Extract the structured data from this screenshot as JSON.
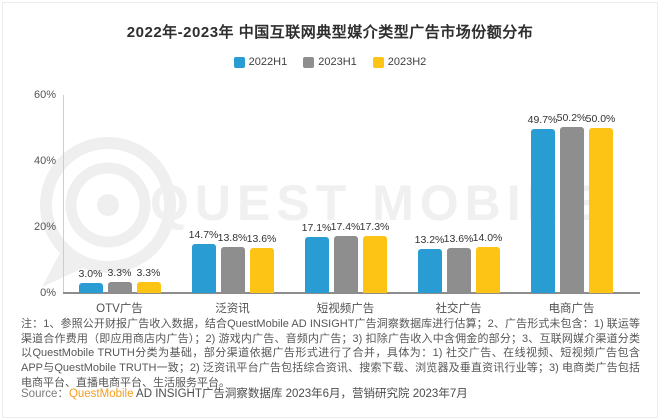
{
  "title": "2022年-2023年 中国互联网典型媒介类型广告市场份额分布",
  "legend": [
    {
      "label": "2022H1",
      "color": "#2A9CD4"
    },
    {
      "label": "2023H1",
      "color": "#8E8E8E"
    },
    {
      "label": "2023H2",
      "color": "#FDC416"
    }
  ],
  "chart_data": {
    "type": "bar",
    "categories": [
      "OTV广告",
      "泛资讯",
      "短视频广告",
      "社交广告",
      "电商广告"
    ],
    "series": [
      {
        "name": "2022H1",
        "color": "#2A9CD4",
        "values": [
          3.0,
          14.7,
          17.1,
          13.2,
          49.7
        ]
      },
      {
        "name": "2023H1",
        "color": "#8E8E8E",
        "values": [
          3.3,
          13.8,
          17.4,
          13.6,
          50.2
        ]
      },
      {
        "name": "2023H2",
        "color": "#FDC416",
        "values": [
          3.3,
          13.6,
          17.3,
          14.0,
          50.0
        ]
      }
    ],
    "value_suffix": "%",
    "ylabel": "",
    "xlabel": "",
    "ylim": [
      0,
      60
    ],
    "y_ticks": [
      0,
      20,
      40,
      60
    ],
    "y_tick_suffix": "%",
    "grid": false,
    "legend_position": "top"
  },
  "watermark": {
    "text": "QUEST MOBILE"
  },
  "notes": {
    "text": "注：1、参照公开财报广告收入数据，结合QuestMobile AD INSIGHT广告洞察数据库进行估算；2、广告形式未包含：1) 联运等渠道合作费用（即应用商店内广告）；2) 游戏内广告、音频内广告；3) 扣除广告收入中含佣金的部分；3、互联网媒介渠道分类以QuestMobile TRUTH分类为基础，部分渠道依据广告形式进行了合并，具体为：1) 社交广告、在线视频、短视频广告包含APP与QuestMobile TRUTH一致；2) 泛资讯平台广告包括综合资讯、搜索下载、浏览器及垂直资讯行业等；3) 电商类广告包括电商平台、直播电商平台、生活服务平台。"
  },
  "source": {
    "label": "Source：",
    "brand": "QuestMobile",
    "rest": " AD INSIGHT广告洞察数据库 2023年6月，营销研究院 2023年7月",
    "brand_color": "#F49D1D"
  }
}
